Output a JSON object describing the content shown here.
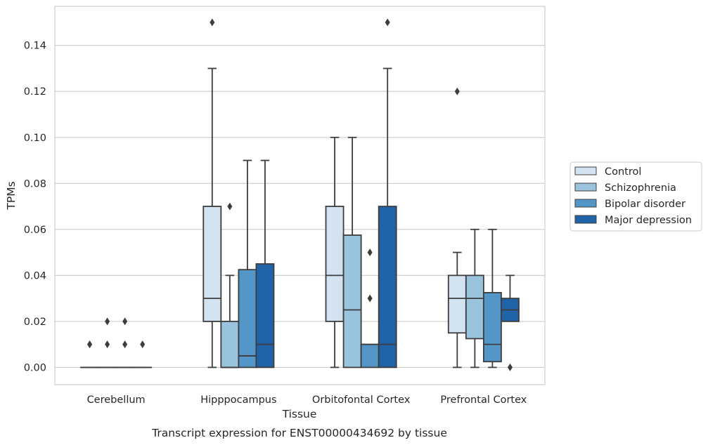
{
  "chart_data": {
    "type": "box",
    "xlabel": "Tissue",
    "ylabel": "TPMs",
    "caption": "Transcript expression for ENST00000434692 by tissue",
    "categories": [
      "Cerebellum",
      "Hipppocampus",
      "Orbitofontal Cortex",
      "Prefrontal Cortex"
    ],
    "ylim": [
      -0.0075,
      0.157
    ],
    "yticks": [
      "0.00",
      "0.02",
      "0.04",
      "0.06",
      "0.08",
      "0.10",
      "0.12",
      "0.14"
    ],
    "grid": true,
    "legend_position": "right",
    "series": [
      {
        "name": "Control",
        "color": "#d4e3f2",
        "boxes": [
          {
            "whislo": 0,
            "q1": 0,
            "med": 0,
            "q3": 0,
            "whishi": 0,
            "fliers": [
              0.01,
              0.01
            ]
          },
          {
            "whislo": 0,
            "q1": 0.02,
            "med": 0.03,
            "q3": 0.07,
            "whishi": 0.13,
            "fliers": [
              0.15
            ]
          },
          {
            "whislo": 0,
            "q1": 0.02,
            "med": 0.04,
            "q3": 0.07,
            "whishi": 0.1,
            "fliers": []
          },
          {
            "whislo": 0,
            "q1": 0.015,
            "med": 0.03,
            "q3": 0.04,
            "whishi": 0.05,
            "fliers": [
              0.12
            ]
          }
        ]
      },
      {
        "name": "Schizophrenia",
        "color": "#9ac4de",
        "boxes": [
          {
            "whislo": 0,
            "q1": 0,
            "med": 0,
            "q3": 0,
            "whishi": 0,
            "fliers": [
              0.02,
              0.01
            ]
          },
          {
            "whislo": 0,
            "q1": 0,
            "med": 0,
            "q3": 0.02,
            "whishi": 0.04,
            "fliers": [
              0.07
            ]
          },
          {
            "whislo": 0,
            "q1": 0,
            "med": 0.025,
            "q3": 0.0575,
            "whishi": 0.1,
            "fliers": []
          },
          {
            "whislo": 0,
            "q1": 0.0125,
            "med": 0.03,
            "q3": 0.04,
            "whishi": 0.06,
            "fliers": []
          }
        ]
      },
      {
        "name": "Bipolar disorder",
        "color": "#5396c7",
        "boxes": [
          {
            "whislo": 0,
            "q1": 0,
            "med": 0,
            "q3": 0,
            "whishi": 0,
            "fliers": [
              0.02,
              0.01
            ]
          },
          {
            "whislo": 0,
            "q1": 0,
            "med": 0.005,
            "q3": 0.0425,
            "whishi": 0.09,
            "fliers": []
          },
          {
            "whislo": 0,
            "q1": 0,
            "med": 0.01,
            "q3": 0.01,
            "whishi": 0.01,
            "fliers": [
              0.05,
              0.03
            ]
          },
          {
            "whislo": 0,
            "q1": 0.0025,
            "med": 0.01,
            "q3": 0.0325,
            "whishi": 0.06,
            "fliers": []
          }
        ]
      },
      {
        "name": "Major depression",
        "color": "#2163a8",
        "boxes": [
          {
            "whislo": 0,
            "q1": 0,
            "med": 0,
            "q3": 0,
            "whishi": 0,
            "fliers": [
              0.01
            ]
          },
          {
            "whislo": 0,
            "q1": 0,
            "med": 0.01,
            "q3": 0.045,
            "whishi": 0.09,
            "fliers": []
          },
          {
            "whislo": 0,
            "q1": 0,
            "med": 0.01,
            "q3": 0.07,
            "whishi": 0.13,
            "fliers": [
              0.15
            ]
          },
          {
            "whislo": 0.02,
            "q1": 0.02,
            "med": 0.025,
            "q3": 0.03,
            "whishi": 0.04,
            "fliers": [
              0
            ]
          }
        ]
      }
    ]
  }
}
